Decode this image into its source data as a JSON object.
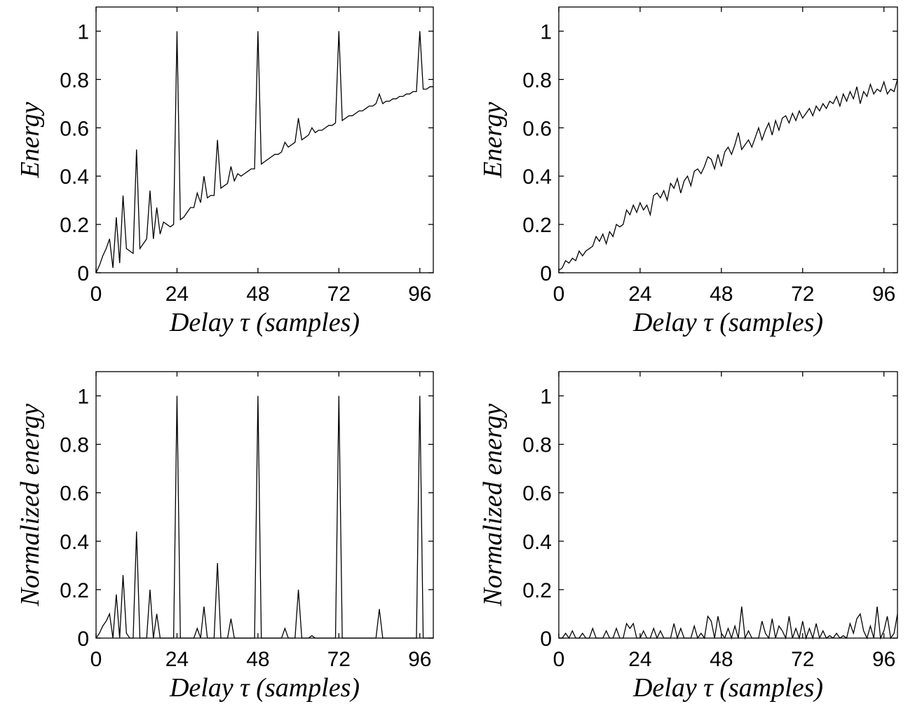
{
  "chart_data": [
    {
      "type": "line",
      "xlabel": "Delay τ (samples)",
      "ylabel": "Energy",
      "color": "#000000",
      "xlim": [
        0,
        100
      ],
      "ylim": [
        0,
        1.1
      ],
      "xticks": [
        0,
        24,
        48,
        72,
        96
      ],
      "yticks": [
        0,
        0.2,
        0.4,
        0.6,
        0.8,
        1
      ],
      "x": [
        0,
        1,
        2,
        3,
        4,
        5,
        6,
        7,
        8,
        9,
        10,
        11,
        12,
        13,
        14,
        15,
        16,
        17,
        18,
        19,
        20,
        21,
        22,
        23,
        24,
        25,
        26,
        27,
        28,
        29,
        30,
        31,
        32,
        33,
        34,
        35,
        36,
        37,
        38,
        39,
        40,
        41,
        42,
        43,
        44,
        45,
        46,
        47,
        48,
        49,
        50,
        51,
        52,
        53,
        54,
        55,
        56,
        57,
        58,
        59,
        60,
        61,
        62,
        63,
        64,
        65,
        66,
        67,
        68,
        69,
        70,
        71,
        72,
        73,
        74,
        75,
        76,
        77,
        78,
        79,
        80,
        81,
        82,
        83,
        84,
        85,
        86,
        87,
        88,
        89,
        90,
        91,
        92,
        93,
        94,
        95,
        96,
        97,
        98,
        99,
        100
      ],
      "values": [
        0,
        0.03,
        0.07,
        0.1,
        0.14,
        0.02,
        0.23,
        0.04,
        0.32,
        0.1,
        0.09,
        0.08,
        0.51,
        0.1,
        0.12,
        0.14,
        0.34,
        0.14,
        0.27,
        0.16,
        0.21,
        0.2,
        0.19,
        0.2,
        1,
        0.22,
        0.23,
        0.25,
        0.27,
        0.27,
        0.33,
        0.29,
        0.4,
        0.31,
        0.32,
        0.32,
        0.55,
        0.35,
        0.36,
        0.37,
        0.44,
        0.38,
        0.41,
        0.4,
        0.41,
        0.42,
        0.43,
        0.43,
        1,
        0.45,
        0.46,
        0.47,
        0.48,
        0.49,
        0.49,
        0.5,
        0.54,
        0.52,
        0.53,
        0.54,
        0.64,
        0.55,
        0.56,
        0.57,
        0.6,
        0.58,
        0.59,
        0.59,
        0.6,
        0.61,
        0.61,
        0.62,
        1,
        0.63,
        0.64,
        0.65,
        0.65,
        0.66,
        0.67,
        0.67,
        0.68,
        0.69,
        0.69,
        0.7,
        0.74,
        0.7,
        0.71,
        0.71,
        0.72,
        0.72,
        0.73,
        0.73,
        0.74,
        0.74,
        0.75,
        0.75,
        1,
        0.76,
        0.76,
        0.77,
        0.77
      ]
    },
    {
      "type": "line",
      "xlabel": "Delay τ (samples)",
      "ylabel": "Energy",
      "color": "#000000",
      "xlim": [
        0,
        100
      ],
      "ylim": [
        0,
        1.1
      ],
      "xticks": [
        0,
        24,
        48,
        72,
        96
      ],
      "yticks": [
        0,
        0.2,
        0.4,
        0.6,
        0.8,
        1
      ],
      "x": [
        0,
        1,
        2,
        3,
        4,
        5,
        6,
        7,
        8,
        9,
        10,
        11,
        12,
        13,
        14,
        15,
        16,
        17,
        18,
        19,
        20,
        21,
        22,
        23,
        24,
        25,
        26,
        27,
        28,
        29,
        30,
        31,
        32,
        33,
        34,
        35,
        36,
        37,
        38,
        39,
        40,
        41,
        42,
        43,
        44,
        45,
        46,
        47,
        48,
        49,
        50,
        51,
        52,
        53,
        54,
        55,
        56,
        57,
        58,
        59,
        60,
        61,
        62,
        63,
        64,
        65,
        66,
        67,
        68,
        69,
        70,
        71,
        72,
        73,
        74,
        75,
        76,
        77,
        78,
        79,
        80,
        81,
        82,
        83,
        84,
        85,
        86,
        87,
        88,
        89,
        90,
        91,
        92,
        93,
        94,
        95,
        96,
        97,
        98,
        99,
        100
      ],
      "values": [
        0.01,
        0.02,
        0.05,
        0.04,
        0.06,
        0.05,
        0.09,
        0.07,
        0.09,
        0.1,
        0.11,
        0.15,
        0.13,
        0.16,
        0.12,
        0.17,
        0.15,
        0.2,
        0.19,
        0.2,
        0.26,
        0.24,
        0.28,
        0.25,
        0.29,
        0.26,
        0.28,
        0.24,
        0.32,
        0.33,
        0.31,
        0.34,
        0.3,
        0.37,
        0.35,
        0.39,
        0.33,
        0.38,
        0.4,
        0.36,
        0.42,
        0.43,
        0.41,
        0.44,
        0.48,
        0.47,
        0.43,
        0.49,
        0.44,
        0.5,
        0.52,
        0.49,
        0.53,
        0.58,
        0.51,
        0.53,
        0.55,
        0.52,
        0.56,
        0.6,
        0.55,
        0.59,
        0.62,
        0.57,
        0.63,
        0.59,
        0.64,
        0.65,
        0.62,
        0.66,
        0.63,
        0.67,
        0.64,
        0.66,
        0.68,
        0.65,
        0.69,
        0.67,
        0.7,
        0.68,
        0.71,
        0.7,
        0.73,
        0.69,
        0.74,
        0.71,
        0.75,
        0.72,
        0.77,
        0.7,
        0.75,
        0.73,
        0.78,
        0.74,
        0.76,
        0.75,
        0.79,
        0.74,
        0.76,
        0.75,
        0.8
      ]
    },
    {
      "type": "line",
      "xlabel": "Delay τ (samples)",
      "ylabel": "Normalized energy",
      "color": "#000000",
      "xlim": [
        0,
        100
      ],
      "ylim": [
        0,
        1.1
      ],
      "xticks": [
        0,
        24,
        48,
        72,
        96
      ],
      "yticks": [
        0,
        0.2,
        0.4,
        0.6,
        0.8,
        1
      ],
      "x": [
        0,
        1,
        2,
        3,
        4,
        5,
        6,
        7,
        8,
        9,
        10,
        11,
        12,
        13,
        14,
        15,
        16,
        17,
        18,
        19,
        20,
        21,
        22,
        23,
        24,
        25,
        26,
        27,
        28,
        29,
        30,
        31,
        32,
        33,
        34,
        35,
        36,
        37,
        38,
        39,
        40,
        41,
        42,
        43,
        44,
        45,
        46,
        47,
        48,
        49,
        50,
        51,
        52,
        53,
        54,
        55,
        56,
        57,
        58,
        59,
        60,
        61,
        62,
        63,
        64,
        65,
        66,
        67,
        68,
        69,
        70,
        71,
        72,
        73,
        74,
        75,
        76,
        77,
        78,
        79,
        80,
        81,
        82,
        83,
        84,
        85,
        86,
        87,
        88,
        89,
        90,
        91,
        92,
        93,
        94,
        95,
        96,
        97,
        98,
        99,
        100
      ],
      "values": [
        0,
        0.02,
        0.05,
        0.07,
        0.1,
        0,
        0.18,
        0,
        0.26,
        0.02,
        0,
        0,
        0.44,
        0,
        0,
        0,
        0.2,
        0,
        0.1,
        0,
        0,
        0,
        0,
        0,
        1,
        0,
        0,
        0,
        0,
        0,
        0.04,
        0,
        0.13,
        0,
        0,
        0,
        0.31,
        0,
        0,
        0,
        0.08,
        0,
        0,
        0,
        0,
        0,
        0,
        0,
        1,
        0,
        0,
        0,
        0,
        0,
        0,
        0,
        0.04,
        0,
        0,
        0,
        0.2,
        0,
        0,
        0,
        0.01,
        0,
        0,
        0,
        0,
        0,
        0,
        0,
        1,
        0,
        0,
        0,
        0,
        0,
        0,
        0,
        0,
        0,
        0,
        0,
        0.12,
        0,
        0,
        0,
        0,
        0,
        0,
        0,
        0,
        0,
        0,
        0,
        1,
        0,
        0,
        0,
        0
      ]
    },
    {
      "type": "line",
      "xlabel": "Delay τ (samples)",
      "ylabel": "Normalized energy",
      "color": "#000000",
      "xlim": [
        0,
        100
      ],
      "ylim": [
        0,
        1.1
      ],
      "xticks": [
        0,
        24,
        48,
        72,
        96
      ],
      "yticks": [
        0,
        0.2,
        0.4,
        0.6,
        0.8,
        1
      ],
      "x": [
        0,
        1,
        2,
        3,
        4,
        5,
        6,
        7,
        8,
        9,
        10,
        11,
        12,
        13,
        14,
        15,
        16,
        17,
        18,
        19,
        20,
        21,
        22,
        23,
        24,
        25,
        26,
        27,
        28,
        29,
        30,
        31,
        32,
        33,
        34,
        35,
        36,
        37,
        38,
        39,
        40,
        41,
        42,
        43,
        44,
        45,
        46,
        47,
        48,
        49,
        50,
        51,
        52,
        53,
        54,
        55,
        56,
        57,
        58,
        59,
        60,
        61,
        62,
        63,
        64,
        65,
        66,
        67,
        68,
        69,
        70,
        71,
        72,
        73,
        74,
        75,
        76,
        77,
        78,
        79,
        80,
        81,
        82,
        83,
        84,
        85,
        86,
        87,
        88,
        89,
        90,
        91,
        92,
        93,
        94,
        95,
        96,
        97,
        98,
        99,
        100
      ],
      "values": [
        0,
        0,
        0.02,
        0,
        0.03,
        0,
        0,
        0.02,
        0,
        0,
        0.04,
        0,
        0,
        0,
        0.03,
        0,
        0,
        0.04,
        0,
        0,
        0.06,
        0.04,
        0.06,
        0,
        0,
        0.03,
        0,
        0,
        0.04,
        0,
        0.03,
        0,
        0,
        0,
        0.06,
        0,
        0.04,
        0,
        0,
        0,
        0.05,
        0,
        0.02,
        0,
        0.09,
        0.07,
        0,
        0.09,
        0.02,
        0,
        0.04,
        0,
        0.05,
        0,
        0.13,
        0,
        0.03,
        0,
        0,
        0,
        0.07,
        0.02,
        0,
        0.08,
        0,
        0.05,
        0.03,
        0,
        0.09,
        0,
        0.04,
        0,
        0.07,
        0,
        0.04,
        0,
        0.06,
        0,
        0.03,
        0,
        0.01,
        0,
        0.02,
        0,
        0.01,
        0,
        0.06,
        0.02,
        0.08,
        0.1,
        0.03,
        0,
        0.05,
        0,
        0.13,
        0,
        0.03,
        0.09,
        0,
        0.02,
        0.1
      ]
    }
  ]
}
